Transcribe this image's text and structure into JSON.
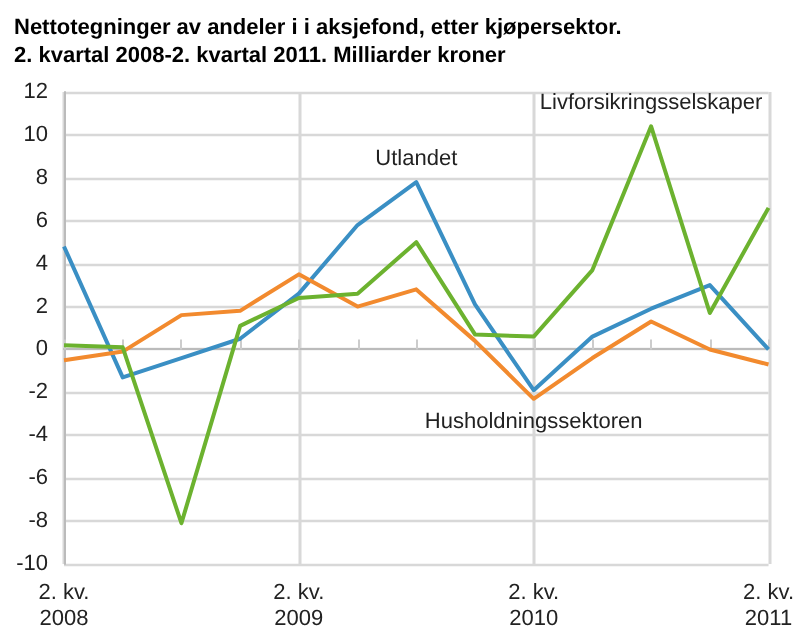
{
  "chart_data": {
    "type": "line",
    "title": "Nettotegninger av andeler i i aksjefond, etter kjøpersektor.\n2. kvartal 2008-2. kvartal 2011. Milliarder kroner",
    "categories": [
      "2. kv.\n2008",
      null,
      null,
      null,
      "2. kv.\n2009",
      null,
      null,
      null,
      "2. kv.\n2010",
      null,
      null,
      null,
      "2. kv.\n2011"
    ],
    "series": [
      {
        "name": "Utlandet",
        "color": "#3a8fc4",
        "values": [
          4.8,
          -1.3,
          -0.4,
          0.5,
          2.6,
          5.8,
          7.8,
          2.1,
          -1.9,
          0.6,
          1.9,
          3.0,
          0.0
        ]
      },
      {
        "name": "Husholdningssektoren",
        "color": "#f28a2e",
        "values": [
          -0.5,
          -0.1,
          1.6,
          1.8,
          3.5,
          2.0,
          2.8,
          0.4,
          -2.3,
          -0.4,
          1.3,
          0.0,
          -0.7
        ]
      },
      {
        "name": "Livforsikringsselskaper",
        "color": "#6cb22f",
        "values": [
          0.2,
          0.1,
          -8.1,
          1.1,
          2.4,
          2.6,
          5.0,
          0.7,
          0.6,
          3.7,
          10.4,
          1.7,
          6.6
        ]
      }
    ],
    "ylim": [
      -10,
      12
    ],
    "yticks": [
      -10,
      -8,
      -6,
      -4,
      -2,
      0,
      2,
      4,
      6,
      8,
      10,
      12
    ],
    "grid": true,
    "legend": false,
    "marker": "none",
    "line_style": "solid"
  }
}
